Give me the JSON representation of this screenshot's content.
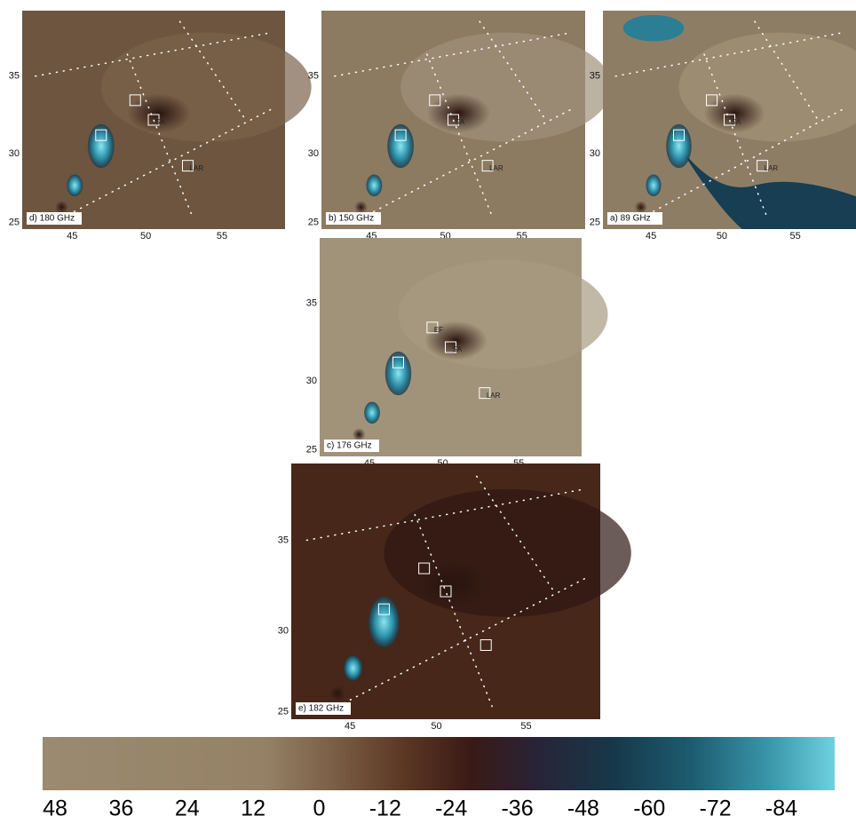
{
  "panels": [
    {
      "label": "d) 180 GHz",
      "xticks": [
        45,
        50,
        55
      ],
      "yticks": [
        35,
        30,
        25
      ],
      "box_labels": [
        "SA",
        "LAR"
      ]
    },
    {
      "label": "b) 150 GHz",
      "xticks": [
        45,
        50,
        55
      ],
      "yticks": [
        35,
        30,
        25
      ],
      "box_labels": [
        "SA",
        "LAR"
      ]
    },
    {
      "label": "a) 89 GHz",
      "xticks": [
        45,
        50,
        55
      ],
      "yticks": [
        35,
        30,
        25
      ],
      "box_labels": [
        "SA",
        "LAR"
      ]
    },
    {
      "label": "c) 176 GHz",
      "xticks": [
        45,
        50,
        55
      ],
      "yticks": [
        35,
        30,
        25
      ],
      "box_labels": [
        "EF",
        "SA",
        "LAR"
      ]
    },
    {
      "label": "e) 182 GHz",
      "xticks": [
        45,
        50,
        55
      ],
      "yticks": [
        35,
        30,
        25
      ],
      "box_labels": []
    }
  ],
  "colorbar": {
    "ticks": [
      48,
      36,
      24,
      12,
      0,
      -12,
      -24,
      -36,
      -48,
      -60,
      -72,
      -84
    ]
  }
}
